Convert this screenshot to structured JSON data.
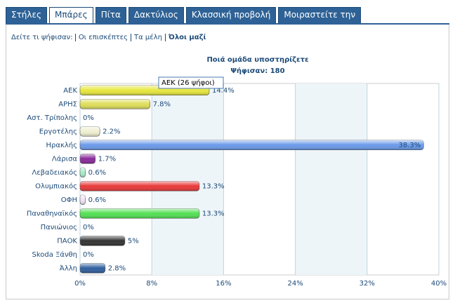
{
  "tabs": [
    "Στήλες",
    "Μπάρες",
    "Πίτα",
    "Δακτύλιος",
    "Κλασσική προβολή",
    "Μοιραστείτε την"
  ],
  "active_tab": 1,
  "filter": {
    "label": "Δείτε τι ψήφισαν:",
    "options": [
      "Οι επισκέπτες",
      "Τα μέλη",
      "Όλοι μαζί"
    ],
    "active": 2
  },
  "chart_data": {
    "type": "hbar",
    "title": "Ποιά ομάδα υποστηρίζετε",
    "subtitle": "Ψήφισαν: 180",
    "categories": [
      "ΑΕΚ",
      "ΑΡΗΣ",
      "Αστ. Τρίπολης",
      "Εργοτέλης",
      "Ηρακλής",
      "Λάρισα",
      "Λεβαδειακός",
      "Ολυμπιακός",
      "ΟΦΗ",
      "Παναθηναϊκός",
      "Πανιώνιος",
      "ΠΑΟΚ",
      "Skoda Ξάνθη",
      "Άλλη"
    ],
    "values": [
      14.4,
      7.8,
      0,
      2.2,
      38.3,
      1.7,
      0.6,
      13.3,
      0.6,
      13.3,
      0,
      5,
      0,
      2.8
    ],
    "value_labels": [
      "14.4%",
      "7.8%",
      "0%",
      "2.2%",
      "38.3%",
      "1.7%",
      "0.6%",
      "13.3%",
      "0.6%",
      "13.3%",
      "0%",
      "5%",
      "0%",
      "2.8%"
    ],
    "colors": [
      "#e6e63c",
      "#dede5a",
      "#3a66c4",
      "#efefd2",
      "#6a9aea",
      "#8a2a9a",
      "#a6ecc6",
      "#e83838",
      "#f2e2f2",
      "#52e052",
      "#d04040",
      "#333333",
      "#88a6c6",
      "#2f5f9f"
    ],
    "xlim": [
      0,
      40
    ],
    "xticks": [
      {
        "value": 0,
        "label": "0%"
      },
      {
        "value": 8,
        "label": "8%"
      },
      {
        "value": 16,
        "label": "16%"
      },
      {
        "value": 24,
        "label": "24%"
      },
      {
        "value": 32,
        "label": "32%"
      },
      {
        "value": 40,
        "label": "40%"
      }
    ],
    "grid": true,
    "tooltip": "ΑΕΚ (26 ψήφοι)"
  }
}
